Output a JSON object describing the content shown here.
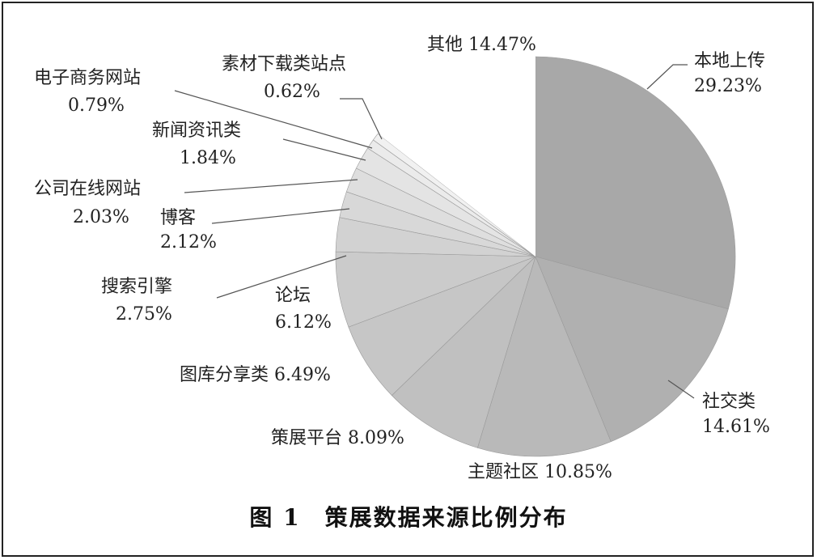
{
  "chart_data": {
    "type": "pie",
    "title": "图 1　策展数据来源比例分布",
    "slices": [
      {
        "label": "本地上传",
        "value": 29.23,
        "text": "29.23%"
      },
      {
        "label": "社交类",
        "value": 14.61,
        "text": "14.61%"
      },
      {
        "label": "主题社区",
        "value": 10.85,
        "text": "10.85%"
      },
      {
        "label": "策展平台",
        "value": 8.09,
        "text": "8.09%"
      },
      {
        "label": "图库分享类",
        "value": 6.49,
        "text": "6.49%"
      },
      {
        "label": "论坛",
        "value": 6.12,
        "text": "6.12%"
      },
      {
        "label": "搜索引擎",
        "value": 2.75,
        "text": "2.75%"
      },
      {
        "label": "博客",
        "value": 2.12,
        "text": "2.12%"
      },
      {
        "label": "公司在线网站",
        "value": 2.03,
        "text": "2.03%"
      },
      {
        "label": "新闻资讯类",
        "value": 1.84,
        "text": "1.84%"
      },
      {
        "label": "电子商务网站",
        "value": 0.79,
        "text": "0.79%"
      },
      {
        "label": "素材下载类站点",
        "value": 0.62,
        "text": "0.62%"
      },
      {
        "label": "其他",
        "value": 14.47,
        "text": "14.47%"
      }
    ],
    "colors": [
      "#a8a8a8",
      "#b0b0b0",
      "#b9b9b9",
      "#c0c0c0",
      "#c6c6c6",
      "#cbcbcb",
      "#d2d2d2",
      "#d8d8d8",
      "#dedede",
      "#e4e4e4",
      "#ebebeb",
      "#f1f1f1",
      "#ffffff"
    ]
  }
}
